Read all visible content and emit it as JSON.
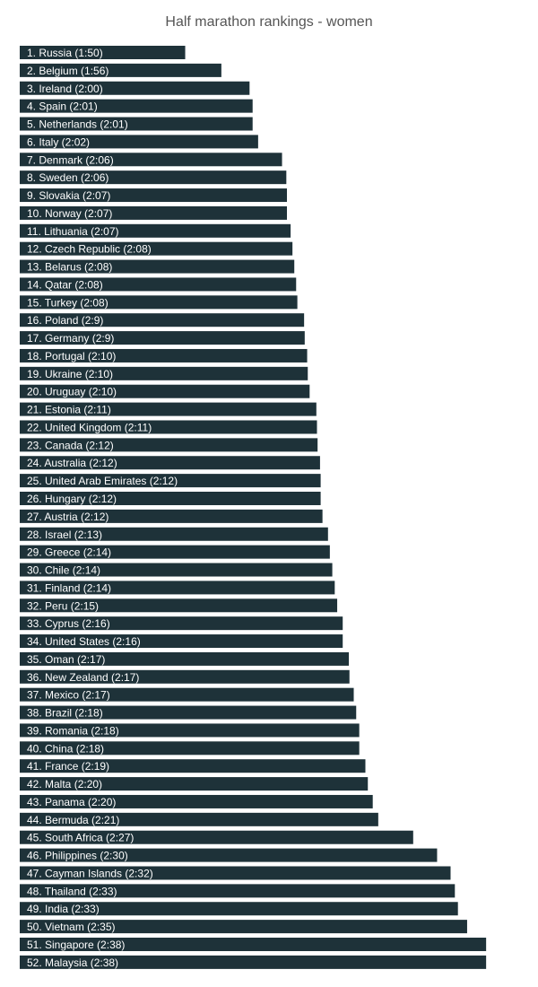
{
  "chart_data": {
    "type": "bar",
    "orientation": "horizontal",
    "title": "Half marathon rankings - women",
    "bar_color": "#1e3239",
    "label_color": "#ffffff",
    "xlabel": "",
    "ylabel": "",
    "grid": false,
    "unit": "minutes",
    "categories": [
      "1. Russia (1:50)",
      "2. Belgium (1:56)",
      "3. Ireland (2:00)",
      "4. Spain (2:01)",
      "5. Netherlands (2:01)",
      "6. Italy (2:02)",
      "7. Denmark (2:06)",
      "8. Sweden (2:06)",
      "9. Slovakia (2:07)",
      "10. Norway (2:07)",
      "11. Lithuania (2:07)",
      "12. Czech Republic (2:08)",
      "13. Belarus (2:08)",
      "14. Qatar (2:08)",
      "15. Turkey (2:08)",
      "16. Poland (2:9)",
      "17. Germany (2:9)",
      "18. Portugal (2:10)",
      "19. Ukraine (2:10)",
      "20. Uruguay (2:10)",
      "21. Estonia (2:11)",
      "22. United Kingdom (2:11)",
      "23. Canada (2:12)",
      "24. Australia (2:12)",
      "25. United Arab Emirates (2:12)",
      "26. Hungary (2:12)",
      "27. Austria (2:12)",
      "28. Israel (2:13)",
      "29. Greece (2:14)",
      "30. Chile (2:14)",
      "31. Finland (2:14)",
      "32. Peru (2:15)",
      "33. Cyprus (2:16)",
      "34. United States (2:16)",
      "35. Oman (2:17)",
      "36. New Zealand (2:17)",
      "37. Mexico (2:17)",
      "38. Brazil (2:18)",
      "39. Romania (2:18)",
      "40. China (2:18)",
      "41. France (2:19)",
      "42. Malta (2:20)",
      "43. Panama (2:20)",
      "44. Bermuda (2:21)",
      "45. South Africa (2:27)",
      "46. Philippines (2:30)",
      "47. Cayman Islands (2:32)",
      "48. Thailand (2:33)",
      "49. India (2:33)",
      "50. Vietnam (2:35)",
      "51. Singapore (2:38)",
      "52. Malaysia (2:38)"
    ],
    "values": [
      110.5,
      116.4,
      121.0,
      121.5,
      121.5,
      122.4,
      126.3,
      127.0,
      127.1,
      127.1,
      127.7,
      128.0,
      128.3,
      128.6,
      128.8,
      129.9,
      130.0,
      130.4,
      130.5,
      130.8,
      131.9,
      132.0,
      132.1,
      132.5,
      132.6,
      132.6,
      132.9,
      133.8,
      134.1,
      134.5,
      134.9,
      135.3,
      136.2,
      136.2,
      137.2,
      137.3,
      138.0,
      138.4,
      138.9,
      138.9,
      139.9,
      140.3,
      141.1,
      142.0,
      147.7,
      151.6,
      153.8,
      154.5,
      155.0,
      156.5,
      159.6,
      159.6
    ]
  }
}
